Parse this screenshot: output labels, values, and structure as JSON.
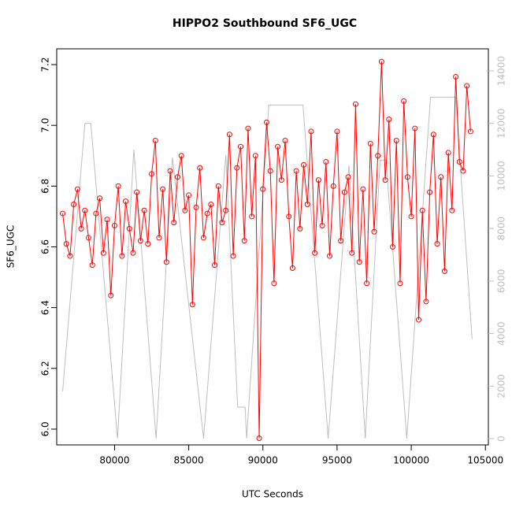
{
  "chart_data": {
    "type": "line",
    "title": "HIPPO2 Southbound SF6_UGC",
    "x_label": "UTC Seconds",
    "y_label": "SF6_UGC",
    "xlim": [
      76100,
      105200
    ],
    "xticks": [
      80000,
      85000,
      90000,
      95000,
      100000,
      105000
    ],
    "ylim": [
      5.948,
      7.252
    ],
    "yticks": [
      {
        "value": 6,
        "label": "6.0"
      },
      6.2,
      6.4,
      6.6,
      6.8,
      {
        "value": 7,
        "label": "7.0"
      },
      7.2
    ],
    "y2lim": [
      -240,
      14840
    ],
    "y2ticks": [
      0,
      2000,
      4000,
      6000,
      8000,
      10000,
      12000,
      14000
    ],
    "series": [
      {
        "color": "#ff0000",
        "markers": true,
        "x": [
          76500,
          76750,
          77000,
          77250,
          77500,
          77750,
          78000,
          78250,
          78500,
          78750,
          79000,
          79250,
          79500,
          79750,
          80000,
          80250,
          80500,
          80750,
          81000,
          81250,
          81500,
          81750,
          82000,
          82250,
          82500,
          82750,
          83000,
          83250,
          83500,
          83750,
          84000,
          84250,
          84500,
          84750,
          85000,
          85250,
          85500,
          85750,
          86000,
          86250,
          86500,
          86750,
          87000,
          87250,
          87500,
          87750,
          88000,
          88250,
          88500,
          88750,
          89000,
          89250,
          89500,
          89750,
          90000,
          90250,
          90500,
          90750,
          91000,
          91250,
          91500,
          91750,
          92000,
          92250,
          92500,
          92750,
          93000,
          93250,
          93500,
          93750,
          94000,
          94250,
          94500,
          94750,
          95000,
          95250,
          95500,
          95750,
          96000,
          96250,
          96500,
          96750,
          97000,
          97250,
          97500,
          97750,
          98000,
          98250,
          98500,
          98750,
          99000,
          99250,
          99500,
          99750,
          100000,
          100250,
          100500,
          100750,
          101000,
          101250,
          101500,
          101750,
          102000,
          102250,
          102500,
          102750,
          103000,
          103250,
          103500,
          103750,
          104000
        ],
        "values": [
          6.71,
          6.61,
          6.57,
          6.74,
          6.79,
          6.66,
          6.72,
          6.63,
          6.54,
          6.71,
          6.76,
          6.58,
          6.69,
          6.44,
          6.67,
          6.8,
          6.57,
          6.75,
          6.66,
          6.58,
          6.78,
          6.62,
          6.72,
          6.61,
          6.84,
          6.95,
          6.63,
          6.79,
          6.55,
          6.85,
          6.68,
          6.83,
          6.9,
          6.72,
          6.77,
          6.41,
          6.73,
          6.86,
          6.63,
          6.71,
          6.74,
          6.54,
          6.8,
          6.68,
          6.72,
          6.97,
          6.57,
          6.86,
          6.93,
          6.62,
          6.99,
          6.7,
          6.9,
          5.97,
          6.79,
          7.01,
          6.85,
          6.48,
          6.93,
          6.82,
          6.95,
          6.7,
          6.53,
          6.85,
          6.66,
          6.87,
          6.74,
          6.98,
          6.58,
          6.82,
          6.67,
          6.88,
          6.57,
          6.8,
          6.98,
          6.62,
          6.78,
          6.83,
          6.58,
          7.07,
          6.55,
          6.79,
          6.48,
          6.94,
          6.65,
          6.9,
          7.21,
          6.82,
          7.02,
          6.6,
          6.95,
          6.48,
          7.08,
          6.83,
          6.7,
          6.99,
          6.36,
          6.72,
          6.42,
          6.78,
          6.97,
          6.61,
          6.83,
          6.52,
          6.91,
          6.72,
          7.16,
          6.88,
          6.85,
          7.13,
          6.98
        ]
      },
      {
        "color": "#bebebe",
        "axis": "y2",
        "markers": false,
        "x": [
          76500,
          78000,
          78400,
          80200,
          81300,
          82800,
          83900,
          86000,
          87500,
          88300,
          88800,
          88900,
          90400,
          92700,
          94400,
          95800,
          96900,
          97900,
          98300,
          99700,
          101300,
          103000,
          104100
        ],
        "values": [
          1800,
          12000,
          12000,
          0,
          11000,
          0,
          10700,
          0,
          10800,
          1200,
          1200,
          0,
          12700,
          12700,
          0,
          10400,
          0,
          10600,
          10600,
          0,
          13000,
          13000,
          3800
        ]
      }
    ]
  }
}
